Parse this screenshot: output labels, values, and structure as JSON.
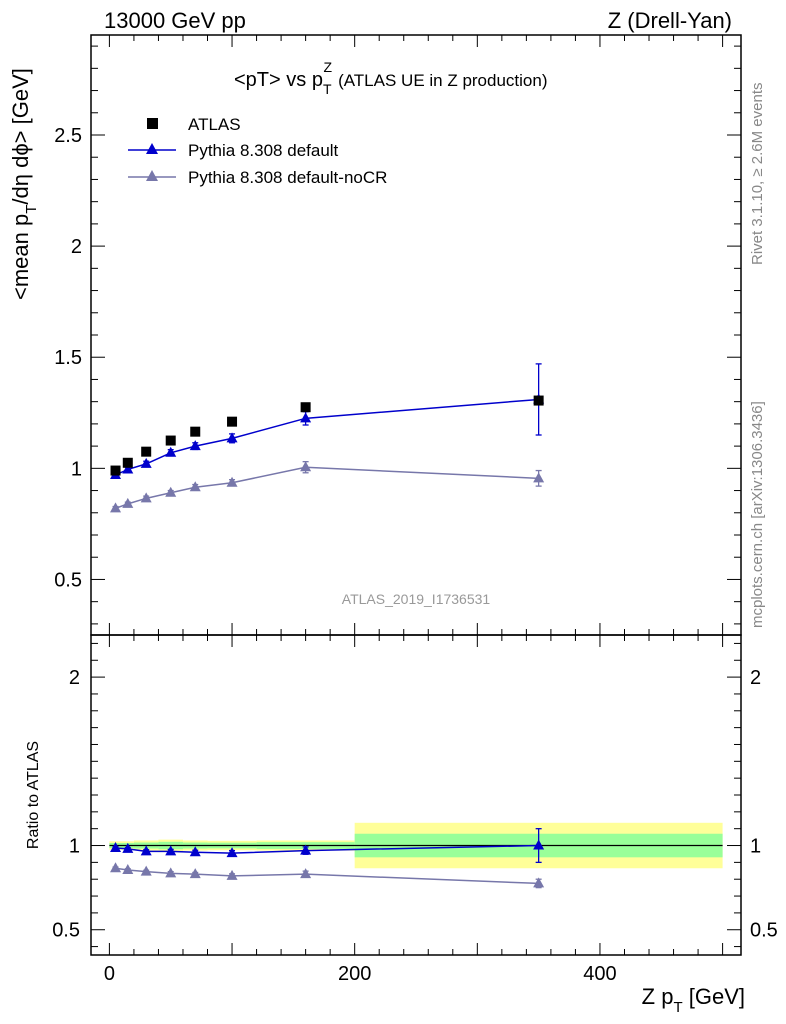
{
  "header": {
    "left": "13000 GeV pp",
    "right": "Z (Drell-Yan)"
  },
  "side_labels": {
    "rivet": "Rivet 3.1.10, ≥ 2.6M events",
    "mcplots": "mcplots.cern.ch [arXiv:1306.3436]"
  },
  "chart_data": [
    {
      "type": "scatter",
      "title": "<pT> vs p_T^Z (ATLAS UE in Z production)",
      "title_parts": {
        "main": "<pT> vs p",
        "sub": "T",
        "sup": "Z",
        "rest": "(ATLAS UE in Z production)"
      },
      "ylabel": "<mean p_T/dη dϕ> [GeV]",
      "ylabel_parts": {
        "pre": "<mean p",
        "sub": "T",
        "post": "/dη dϕ> [GeV]"
      },
      "watermark": "ATLAS_2019_I1736531",
      "xlim": [
        -15,
        515
      ],
      "ylim": [
        0.25,
        2.95
      ],
      "yticks": [
        0.5,
        1,
        1.5,
        2,
        2.5
      ],
      "ytick_labels": [
        "0.5",
        "1",
        "1.5",
        "2",
        "2.5"
      ],
      "legend_position": "top-left",
      "legend": [
        "ATLAS",
        "Pythia 8.308 default",
        "Pythia 8.308 default-noCR"
      ],
      "series": [
        {
          "name": "ATLAS",
          "marker": "square",
          "color": "#000000",
          "x": [
            5,
            15,
            30,
            50,
            70,
            100,
            160,
            350
          ],
          "y": [
            0.99,
            1.025,
            1.075,
            1.125,
            1.165,
            1.21,
            1.275,
            1.305
          ],
          "err": [
            0,
            0,
            0,
            0,
            0,
            0,
            0,
            0
          ]
        },
        {
          "name": "Pythia 8.308 default",
          "marker": "triangle",
          "color": "#0000cc",
          "x": [
            5,
            15,
            30,
            50,
            70,
            100,
            160,
            350
          ],
          "y": [
            0.97,
            0.995,
            1.02,
            1.07,
            1.1,
            1.135,
            1.225,
            1.31
          ],
          "err": [
            0.01,
            0.01,
            0.012,
            0.014,
            0.015,
            0.02,
            0.03,
            0.16
          ]
        },
        {
          "name": "Pythia 8.308 default-noCR",
          "marker": "triangle",
          "color": "#7777aa",
          "x": [
            5,
            15,
            30,
            50,
            70,
            100,
            160,
            350
          ],
          "y": [
            0.82,
            0.84,
            0.865,
            0.89,
            0.915,
            0.935,
            1.005,
            0.955
          ],
          "err": [
            0.008,
            0.008,
            0.01,
            0.01,
            0.012,
            0.014,
            0.025,
            0.035
          ]
        }
      ]
    },
    {
      "type": "scatter",
      "ylabel": "Ratio to ATLAS",
      "xlabel": "Z p_T [GeV]",
      "xlabel_parts": {
        "pre": "Z p",
        "sub": "T",
        "post": " [GeV]"
      },
      "xlim": [
        -15,
        515
      ],
      "ylim": [
        0.35,
        2.25
      ],
      "xticks": [
        0,
        200,
        400
      ],
      "xtick_labels": [
        "0",
        "200",
        "400"
      ],
      "yticks": [
        0.5,
        1,
        2
      ],
      "ytick_labels": [
        "0.5",
        "1",
        "2"
      ],
      "bands": [
        {
          "x0": 0,
          "x1": 20,
          "yellow": [
            0.975,
            1.025
          ],
          "green": [
            0.985,
            1.015
          ]
        },
        {
          "x0": 20,
          "x1": 40,
          "yellow": [
            0.97,
            1.03
          ],
          "green": [
            0.982,
            1.018
          ]
        },
        {
          "x0": 40,
          "x1": 60,
          "yellow": [
            0.965,
            1.035
          ],
          "green": [
            0.978,
            1.022
          ]
        },
        {
          "x0": 60,
          "x1": 80,
          "yellow": [
            0.97,
            1.03
          ],
          "green": [
            0.982,
            1.018
          ]
        },
        {
          "x0": 80,
          "x1": 120,
          "yellow": [
            0.972,
            1.028
          ],
          "green": [
            0.983,
            1.017
          ]
        },
        {
          "x0": 120,
          "x1": 200,
          "yellow": [
            0.97,
            1.03
          ],
          "green": [
            0.98,
            1.02
          ]
        },
        {
          "x0": 200,
          "x1": 500,
          "yellow": [
            0.865,
            1.135
          ],
          "green": [
            0.93,
            1.07
          ]
        }
      ],
      "series": [
        {
          "name": "Pythia 8.308 default",
          "marker": "triangle",
          "color": "#0000cc",
          "x": [
            5,
            15,
            30,
            50,
            70,
            100,
            160,
            350
          ],
          "y": [
            0.985,
            0.98,
            0.965,
            0.965,
            0.96,
            0.955,
            0.97,
            1.0
          ],
          "err": [
            0.008,
            0.008,
            0.01,
            0.012,
            0.012,
            0.015,
            0.022,
            0.1
          ]
        },
        {
          "name": "Pythia 8.308 default-noCR",
          "marker": "triangle",
          "color": "#7777aa",
          "x": [
            5,
            15,
            30,
            50,
            70,
            100,
            160,
            350
          ],
          "y": [
            0.865,
            0.855,
            0.845,
            0.835,
            0.83,
            0.82,
            0.83,
            0.775
          ],
          "err": [
            0.007,
            0.007,
            0.008,
            0.01,
            0.01,
            0.012,
            0.018,
            0.025
          ]
        }
      ]
    }
  ]
}
